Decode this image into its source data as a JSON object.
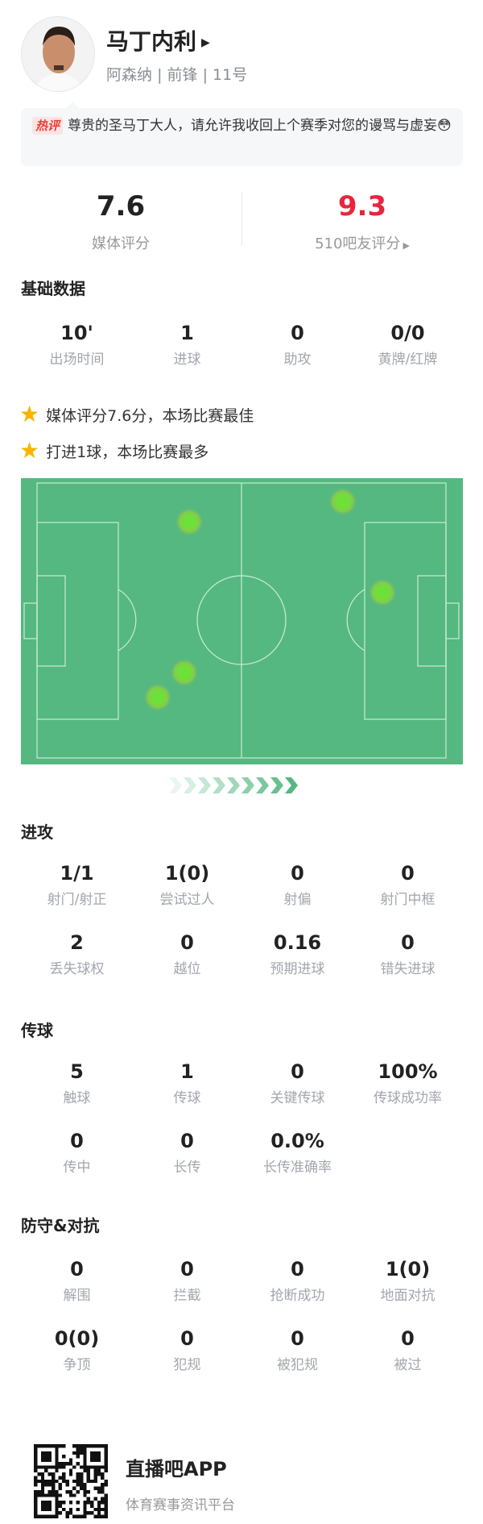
{
  "player": {
    "name": "马丁内利",
    "team": "阿森纳",
    "position": "前锋",
    "number": "11号",
    "separator": "|"
  },
  "comment": {
    "tag": "热评",
    "text": "尊贵的圣马丁大人，请允许我收回上个赛季对您的谩骂与虚妄😳"
  },
  "ratings": {
    "media": {
      "value": "7.6",
      "label": "媒体评分"
    },
    "fans": {
      "value": "9.3",
      "label": "510吧友评分",
      "color": "#e8253f"
    }
  },
  "basic": {
    "title": "基础数据",
    "items": [
      {
        "value": "10'",
        "label": "出场时间"
      },
      {
        "value": "1",
        "label": "进球"
      },
      {
        "value": "0",
        "label": "助攻"
      },
      {
        "value": "0/0",
        "label": "黄牌/红牌"
      }
    ]
  },
  "highlights": [
    "媒体评分7.6分，本场比赛最佳",
    "打进1球，本场比赛最多"
  ],
  "heatmap": {
    "pitch_color": "#55b880",
    "line_color": "#c9ecd6",
    "dot_color": "#6de03a",
    "pitch_size_m": [
      105,
      68
    ],
    "touches_m": [
      [
        39.1,
        9.6
      ],
      [
        78.5,
        4.6
      ],
      [
        88.7,
        27.1
      ],
      [
        37.8,
        46.9
      ],
      [
        31.0,
        53.0
      ]
    ],
    "direction_icon": "chevrons-right-icon"
  },
  "attack": {
    "title": "进攻",
    "items": [
      {
        "value": "1/1",
        "label": "射门/射正"
      },
      {
        "value": "1(0)",
        "label": "尝试过人"
      },
      {
        "value": "0",
        "label": "射偏"
      },
      {
        "value": "0",
        "label": "射门中框"
      },
      {
        "value": "2",
        "label": "丢失球权"
      },
      {
        "value": "0",
        "label": "越位"
      },
      {
        "value": "0.16",
        "label": "预期进球"
      },
      {
        "value": "0",
        "label": "错失进球"
      }
    ]
  },
  "passing": {
    "title": "传球",
    "items": [
      {
        "value": "5",
        "label": "触球"
      },
      {
        "value": "1",
        "label": "传球"
      },
      {
        "value": "0",
        "label": "关键传球"
      },
      {
        "value": "100%",
        "label": "传球成功率"
      },
      {
        "value": "0",
        "label": "传中"
      },
      {
        "value": "0",
        "label": "长传"
      },
      {
        "value": "0.0%",
        "label": "长传准确率"
      }
    ]
  },
  "defense": {
    "title": "防守&对抗",
    "items": [
      {
        "value": "0",
        "label": "解围"
      },
      {
        "value": "0",
        "label": "拦截"
      },
      {
        "value": "0",
        "label": "抢断成功"
      },
      {
        "value": "1(0)",
        "label": "地面对抗"
      },
      {
        "value": "0(0)",
        "label": "争顶"
      },
      {
        "value": "0",
        "label": "犯规"
      },
      {
        "value": "0",
        "label": "被犯规"
      },
      {
        "value": "0",
        "label": "被过"
      }
    ]
  },
  "footer": {
    "title": "直播吧APP",
    "subtitle": "体育赛事资讯平台"
  }
}
